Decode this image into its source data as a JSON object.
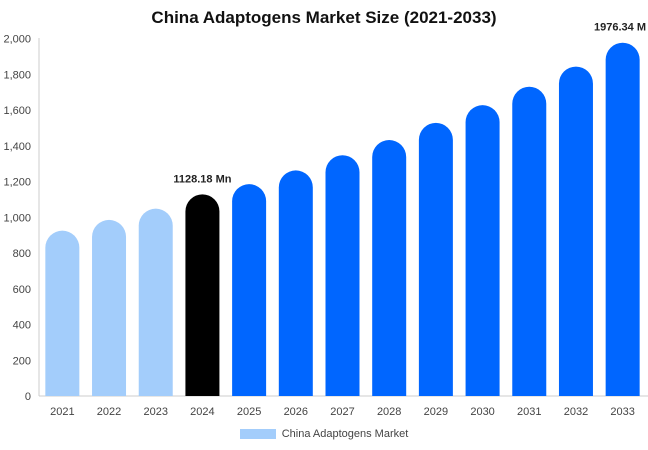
{
  "chart_data": {
    "type": "bar",
    "title": "China Adaptogens Market Size (2021-2033)",
    "categories": [
      "2021",
      "2022",
      "2023",
      "2024",
      "2025",
      "2026",
      "2027",
      "2028",
      "2029",
      "2030",
      "2031",
      "2032",
      "2033"
    ],
    "series": [
      {
        "name": "China Adaptogens Market",
        "values": [
          925,
          985,
          1048,
          1128.18,
          1185,
          1262,
          1347,
          1432,
          1528,
          1627,
          1730,
          1843,
          1976.34
        ]
      }
    ],
    "ylim": [
      0,
      2000
    ],
    "yticks": [
      0,
      200,
      400,
      600,
      800,
      1000,
      1200,
      1400,
      1600,
      1800,
      2000
    ],
    "ytick_labels": [
      "0",
      "200",
      "400",
      "600",
      "800",
      "1,000",
      "1,200",
      "1,400",
      "1,600",
      "1,800",
      "2,000"
    ],
    "grid": false,
    "legend_position": "bottom-center",
    "annotations": [
      {
        "category": "2024",
        "text": "1128.18 Mn"
      },
      {
        "category": "2033",
        "text": "1976.34 M"
      }
    ],
    "colors": {
      "historical": "#a3cdfb",
      "current": "#000000",
      "forecast": "#0066ff",
      "legend": "#a3cdfb"
    },
    "bar_color_groups": [
      "historical",
      "historical",
      "historical",
      "current",
      "forecast",
      "forecast",
      "forecast",
      "forecast",
      "forecast",
      "forecast",
      "forecast",
      "forecast",
      "forecast"
    ]
  }
}
